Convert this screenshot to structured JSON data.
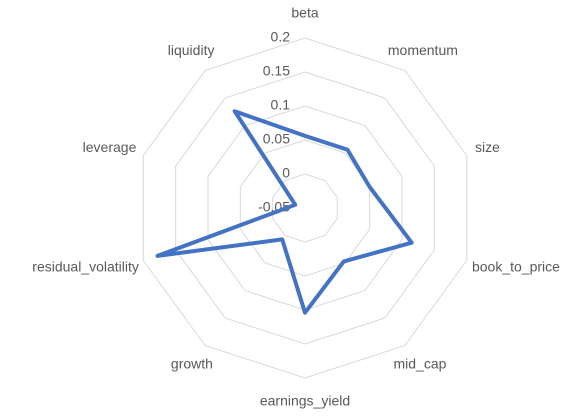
{
  "chart_data": {
    "type": "radar",
    "categories": [
      "beta",
      "momentum",
      "size",
      "book_to_price",
      "mid_cap",
      "earnings_yield",
      "growth",
      "residual_volatility",
      "leverage",
      "liquidity"
    ],
    "values": [
      0.056,
      0.056,
      0.05,
      0.115,
      0.047,
      0.104,
      0.007,
      0.178,
      -0.035,
      0.126
    ],
    "color": "#4472c4",
    "rlim": [
      -0.05,
      0.2
    ],
    "rticks": [
      -0.05,
      0,
      0.05,
      0.1,
      0.15,
      0.2
    ],
    "grid": true
  }
}
